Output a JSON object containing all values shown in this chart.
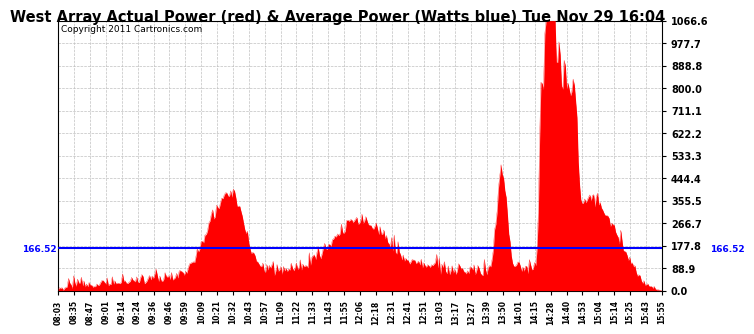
{
  "title": "West Array Actual Power (red) & Average Power (Watts blue) Tue Nov 29 16:04",
  "copyright": "Copyright 2011 Cartronics.com",
  "avg_power": 166.52,
  "ymax": 1066.6,
  "ymin": 0.0,
  "yticks": [
    0.0,
    88.9,
    177.8,
    266.7,
    355.5,
    444.4,
    533.3,
    622.2,
    711.1,
    800.0,
    888.8,
    977.7,
    1066.6
  ],
  "ytick_labels": [
    "0.0",
    "88.9",
    "177.8",
    "266.7",
    "355.5",
    "444.4",
    "533.3",
    "622.2",
    "711.1",
    "800.0",
    "888.8",
    "977.7",
    "1066.6"
  ],
  "xtick_labels": [
    "08:03",
    "08:35",
    "08:47",
    "09:01",
    "09:14",
    "09:24",
    "09:36",
    "09:46",
    "09:59",
    "10:09",
    "10:21",
    "10:32",
    "10:43",
    "10:57",
    "11:09",
    "11:22",
    "11:33",
    "11:43",
    "11:55",
    "12:06",
    "12:18",
    "12:31",
    "12:41",
    "12:51",
    "13:03",
    "13:17",
    "13:27",
    "13:39",
    "13:50",
    "14:01",
    "14:15",
    "14:28",
    "14:40",
    "14:53",
    "15:04",
    "15:14",
    "15:25",
    "15:43",
    "15:55"
  ],
  "bar_color": "#FF0000",
  "line_color": "#0000FF",
  "grid_color": "#C0C0C0",
  "bg_color": "#FFFFFF",
  "title_fontsize": 10.5,
  "copyright_fontsize": 6.5
}
